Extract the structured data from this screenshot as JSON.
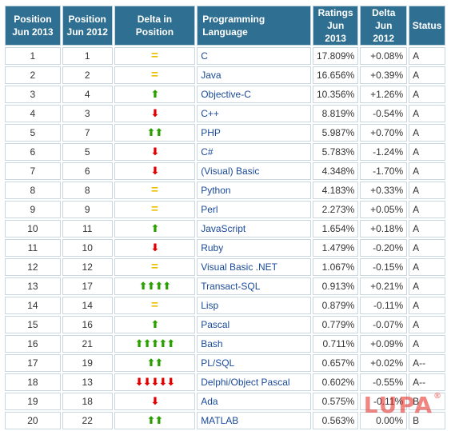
{
  "headers": {
    "pos_2013": "Position Jun 2013",
    "pos_2012": "Position Jun 2012",
    "delta_position": "Delta in Position",
    "language": "Programming Language",
    "ratings": "Ratings Jun 2013",
    "delta_rating": "Delta Jun 2012",
    "status": "Status"
  },
  "rows": [
    {
      "pos2013": "1",
      "pos2012": "1",
      "trend": "same",
      "arrow_count": 1,
      "language": "C",
      "rating": "17.809%",
      "delta": "+0.08%",
      "status": "A"
    },
    {
      "pos2013": "2",
      "pos2012": "2",
      "trend": "same",
      "arrow_count": 1,
      "language": "Java",
      "rating": "16.656%",
      "delta": "+0.39%",
      "status": "A"
    },
    {
      "pos2013": "3",
      "pos2012": "4",
      "trend": "up",
      "arrow_count": 1,
      "language": "Objective-C",
      "rating": "10.356%",
      "delta": "+1.26%",
      "status": "A"
    },
    {
      "pos2013": "4",
      "pos2012": "3",
      "trend": "down",
      "arrow_count": 1,
      "language": "C++",
      "rating": "8.819%",
      "delta": "-0.54%",
      "status": "A"
    },
    {
      "pos2013": "5",
      "pos2012": "7",
      "trend": "up",
      "arrow_count": 2,
      "language": "PHP",
      "rating": "5.987%",
      "delta": "+0.70%",
      "status": "A"
    },
    {
      "pos2013": "6",
      "pos2012": "5",
      "trend": "down",
      "arrow_count": 1,
      "language": "C#",
      "rating": "5.783%",
      "delta": "-1.24%",
      "status": "A"
    },
    {
      "pos2013": "7",
      "pos2012": "6",
      "trend": "down",
      "arrow_count": 1,
      "language": "(Visual) Basic",
      "rating": "4.348%",
      "delta": "-1.70%",
      "status": "A"
    },
    {
      "pos2013": "8",
      "pos2012": "8",
      "trend": "same",
      "arrow_count": 1,
      "language": "Python",
      "rating": "4.183%",
      "delta": "+0.33%",
      "status": "A"
    },
    {
      "pos2013": "9",
      "pos2012": "9",
      "trend": "same",
      "arrow_count": 1,
      "language": "Perl",
      "rating": "2.273%",
      "delta": "+0.05%",
      "status": "A"
    },
    {
      "pos2013": "10",
      "pos2012": "11",
      "trend": "up",
      "arrow_count": 1,
      "language": "JavaScript",
      "rating": "1.654%",
      "delta": "+0.18%",
      "status": "A"
    },
    {
      "pos2013": "11",
      "pos2012": "10",
      "trend": "down",
      "arrow_count": 1,
      "language": "Ruby",
      "rating": "1.479%",
      "delta": "-0.20%",
      "status": "A"
    },
    {
      "pos2013": "12",
      "pos2012": "12",
      "trend": "same",
      "arrow_count": 1,
      "language": "Visual Basic .NET",
      "rating": "1.067%",
      "delta": "-0.15%",
      "status": "A"
    },
    {
      "pos2013": "13",
      "pos2012": "17",
      "trend": "up",
      "arrow_count": 4,
      "language": "Transact-SQL",
      "rating": "0.913%",
      "delta": "+0.21%",
      "status": "A"
    },
    {
      "pos2013": "14",
      "pos2012": "14",
      "trend": "same",
      "arrow_count": 1,
      "language": "Lisp",
      "rating": "0.879%",
      "delta": "-0.11%",
      "status": "A"
    },
    {
      "pos2013": "15",
      "pos2012": "16",
      "trend": "up",
      "arrow_count": 1,
      "language": "Pascal",
      "rating": "0.779%",
      "delta": "-0.07%",
      "status": "A"
    },
    {
      "pos2013": "16",
      "pos2012": "21",
      "trend": "up",
      "arrow_count": 5,
      "language": "Bash",
      "rating": "0.711%",
      "delta": "+0.09%",
      "status": "A"
    },
    {
      "pos2013": "17",
      "pos2012": "19",
      "trend": "up",
      "arrow_count": 2,
      "language": "PL/SQL",
      "rating": "0.657%",
      "delta": "+0.02%",
      "status": "A--"
    },
    {
      "pos2013": "18",
      "pos2012": "13",
      "trend": "down",
      "arrow_count": 5,
      "language": "Delphi/Object Pascal",
      "rating": "0.602%",
      "delta": "-0.55%",
      "status": "A--"
    },
    {
      "pos2013": "19",
      "pos2012": "18",
      "trend": "down",
      "arrow_count": 1,
      "language": "Ada",
      "rating": "0.575%",
      "delta": "-0.11%",
      "status": "B"
    },
    {
      "pos2013": "20",
      "pos2012": "22",
      "trend": "up",
      "arrow_count": 2,
      "language": "MATLAB",
      "rating": "0.563%",
      "delta": "0.00%",
      "status": "B"
    }
  ],
  "colors": {
    "header_bg": "#2f6f91",
    "up_arrow": "#2aa000",
    "down_arrow": "#e00000",
    "equal_sign": "#f0c000",
    "language_link": "#1a4a9a"
  },
  "watermark": {
    "text": "LUPA",
    "mark": "®"
  }
}
